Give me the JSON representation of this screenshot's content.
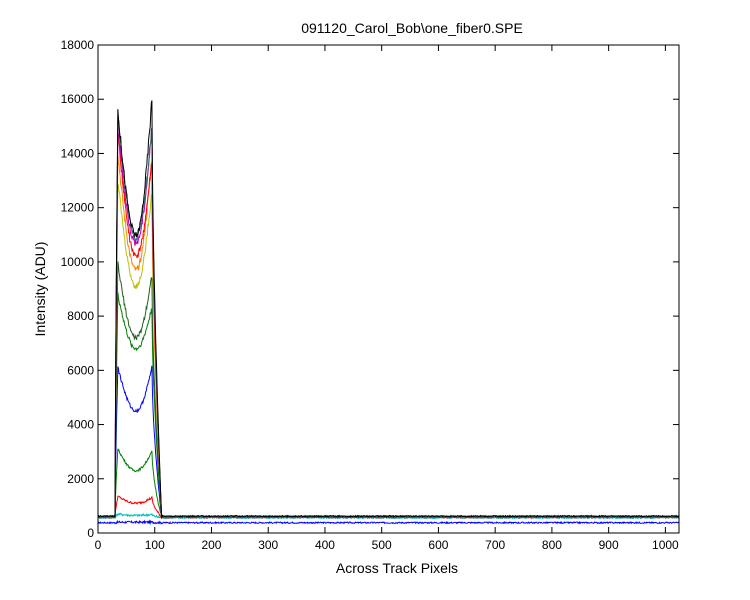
{
  "chart_data": {
    "type": "line",
    "title": "091120_Carol_Bob\\one_fiber0.SPE",
    "xlabel": "Across Track Pixels",
    "ylabel": "Intensity (ADU)",
    "xlim": [
      0,
      1024
    ],
    "ylim": [
      0,
      18000
    ],
    "xticks": [
      0,
      100,
      200,
      300,
      400,
      500,
      600,
      700,
      800,
      900,
      1000
    ],
    "yticks": [
      0,
      2000,
      4000,
      6000,
      8000,
      10000,
      12000,
      14000,
      16000,
      18000
    ],
    "grid": false,
    "legend": "none",
    "profile_shape": {
      "rise_start": 30,
      "left_peak_x": 35,
      "valley_x": 67,
      "right_peak_x": 95,
      "fall_end": 112,
      "flat_start": 115
    },
    "series": [
      {
        "color": "#0000ff",
        "baseline": 380,
        "left_peak": 400,
        "valley": 400,
        "right_peak": 400
      },
      {
        "color": "#00bfbf",
        "baseline": 560,
        "left_peak": 700,
        "valley": 650,
        "right_peak": 680
      },
      {
        "color": "#ff0000",
        "baseline": 580,
        "left_peak": 1350,
        "valley": 1100,
        "right_peak": 1300
      },
      {
        "color": "#008000",
        "baseline": 590,
        "left_peak": 3100,
        "valley": 2300,
        "right_peak": 3000
      },
      {
        "color": "#0000ff",
        "baseline": 600,
        "left_peak": 6100,
        "valley": 4500,
        "right_peak": 6100
      },
      {
        "color": "#008000",
        "baseline": 600,
        "left_peak": 8800,
        "valley": 6800,
        "right_peak": 8300
      },
      {
        "color": "#1f5f1f",
        "baseline": 600,
        "left_peak": 9900,
        "valley": 7200,
        "right_peak": 9500
      },
      {
        "color": "#bfbf00",
        "baseline": 600,
        "left_peak": 13000,
        "valley": 9100,
        "right_peak": 12600
      },
      {
        "color": "#ff8000",
        "baseline": 600,
        "left_peak": 14000,
        "valley": 9700,
        "right_peak": 13800
      },
      {
        "color": "#ff0000",
        "baseline": 600,
        "left_peak": 14800,
        "valley": 10200,
        "right_peak": 13700
      },
      {
        "color": "#bf00bf",
        "baseline": 600,
        "left_peak": 15000,
        "valley": 10700,
        "right_peak": 14900
      },
      {
        "color": "#2f6f6f",
        "baseline": 600,
        "left_peak": 15400,
        "valley": 10900,
        "right_peak": 15000
      },
      {
        "color": "#000000",
        "baseline": 620,
        "left_peak": 15600,
        "valley": 11000,
        "right_peak": 16000
      }
    ]
  }
}
